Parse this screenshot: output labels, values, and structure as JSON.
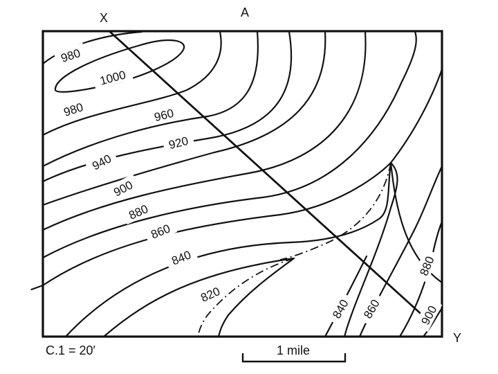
{
  "labels": {
    "point_x": "X",
    "point_a": "A",
    "point_y": "Y",
    "contour_interval": "C.1 = 20′",
    "scale": "1 mile"
  },
  "contours": {
    "c980a": "980",
    "c1000": "1000",
    "c980b": "980",
    "c960": "960",
    "c940": "940",
    "c920": "920",
    "c900": "900",
    "c880": "880",
    "c860": "860",
    "c840": "840",
    "c820": "820",
    "c840b": "840",
    "c860b": "860",
    "c880b": "880",
    "c900b": "900"
  }
}
